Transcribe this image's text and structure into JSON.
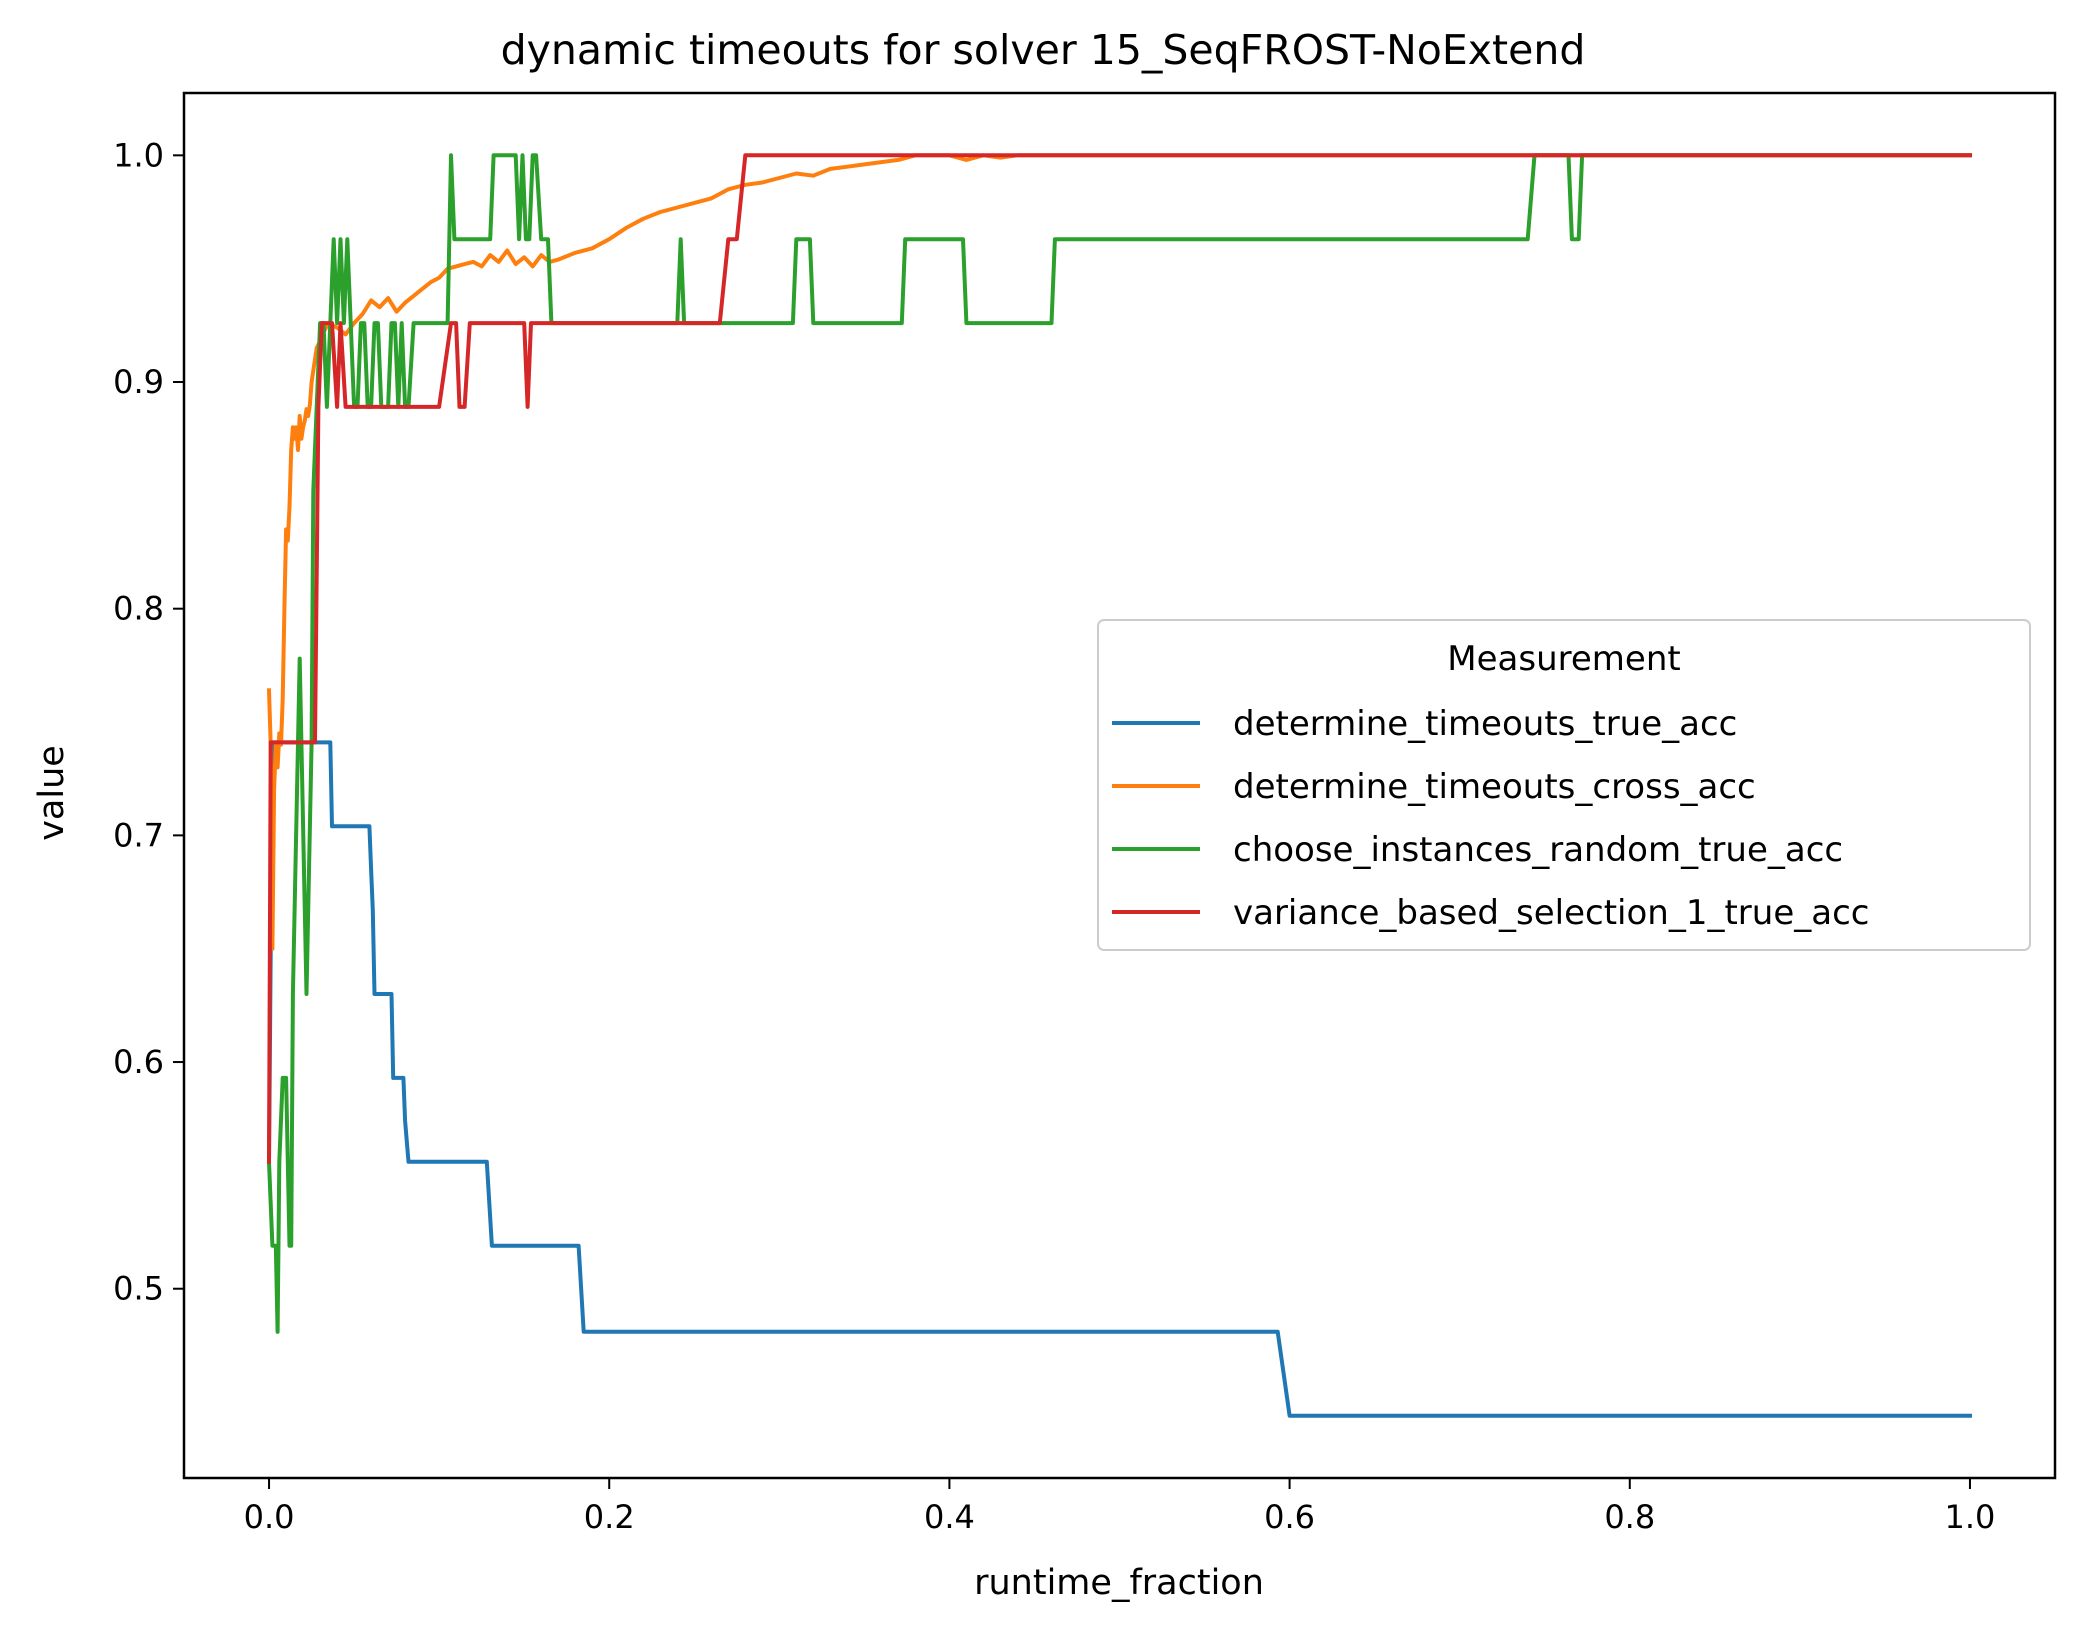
{
  "chart_data": {
    "type": "line",
    "title": "dynamic timeouts for solver 15_SeqFROST-NoExtend",
    "xlabel": "runtime_fraction",
    "ylabel": "value",
    "xlim": [
      -0.05,
      1.05
    ],
    "ylim": [
      0.4165,
      1.0275
    ],
    "xticks": [
      0.0,
      0.2,
      0.4,
      0.6,
      0.8,
      1.0
    ],
    "xtick_labels": [
      "0.0",
      "0.2",
      "0.4",
      "0.6",
      "0.8",
      "1.0"
    ],
    "yticks": [
      0.5,
      0.6,
      0.7,
      0.8,
      0.9,
      1.0
    ],
    "ytick_labels": [
      "0.5",
      "0.6",
      "0.7",
      "0.8",
      "0.9",
      "1.0"
    ],
    "grid": false,
    "legend": {
      "title": "Measurement",
      "placement": "center-right"
    },
    "series": [
      {
        "name": "determine_timeouts_true_acc",
        "color": "#1f77b4",
        "x": [
          0.0,
          0.002,
          0.004,
          0.036,
          0.037,
          0.059,
          0.06,
          0.061,
          0.062,
          0.072,
          0.073,
          0.079,
          0.08,
          0.082,
          0.128,
          0.131,
          0.182,
          0.185,
          0.593,
          0.6,
          1.0
        ],
        "y": [
          0.556,
          0.741,
          0.741,
          0.741,
          0.704,
          0.704,
          0.685,
          0.667,
          0.63,
          0.63,
          0.593,
          0.593,
          0.574,
          0.556,
          0.556,
          0.519,
          0.519,
          0.481,
          0.481,
          0.444,
          0.444
        ]
      },
      {
        "name": "determine_timeouts_cross_acc",
        "color": "#ff7f0e",
        "x": [
          0.0,
          0.001,
          0.002,
          0.003,
          0.004,
          0.005,
          0.006,
          0.007,
          0.008,
          0.009,
          0.01,
          0.011,
          0.012,
          0.013,
          0.014,
          0.015,
          0.016,
          0.017,
          0.018,
          0.019,
          0.02,
          0.021,
          0.022,
          0.023,
          0.024,
          0.025,
          0.026,
          0.027,
          0.028,
          0.03,
          0.032,
          0.035,
          0.04,
          0.045,
          0.05,
          0.055,
          0.06,
          0.065,
          0.07,
          0.075,
          0.08,
          0.085,
          0.09,
          0.095,
          0.1,
          0.105,
          0.11,
          0.115,
          0.12,
          0.125,
          0.13,
          0.135,
          0.14,
          0.145,
          0.15,
          0.155,
          0.16,
          0.165,
          0.17,
          0.18,
          0.19,
          0.2,
          0.21,
          0.22,
          0.23,
          0.24,
          0.25,
          0.26,
          0.265,
          0.27,
          0.28,
          0.29,
          0.3,
          0.31,
          0.32,
          0.33,
          0.34,
          0.35,
          0.36,
          0.37,
          0.38,
          0.4,
          0.41,
          0.42,
          0.43,
          0.44,
          1.0
        ],
        "y": [
          0.764,
          0.74,
          0.65,
          0.72,
          0.74,
          0.73,
          0.745,
          0.74,
          0.76,
          0.8,
          0.835,
          0.83,
          0.845,
          0.87,
          0.88,
          0.875,
          0.88,
          0.87,
          0.885,
          0.875,
          0.88,
          0.883,
          0.888,
          0.885,
          0.89,
          0.9,
          0.905,
          0.91,
          0.915,
          0.918,
          0.922,
          0.926,
          0.924,
          0.921,
          0.926,
          0.93,
          0.936,
          0.933,
          0.937,
          0.931,
          0.935,
          0.938,
          0.941,
          0.944,
          0.946,
          0.95,
          0.951,
          0.952,
          0.953,
          0.951,
          0.956,
          0.953,
          0.958,
          0.952,
          0.955,
          0.951,
          0.956,
          0.953,
          0.954,
          0.957,
          0.959,
          0.963,
          0.968,
          0.972,
          0.975,
          0.977,
          0.979,
          0.981,
          0.983,
          0.985,
          0.987,
          0.988,
          0.99,
          0.992,
          0.991,
          0.994,
          0.995,
          0.996,
          0.997,
          0.998,
          1.0,
          1.0,
          0.998,
          1.0,
          0.999,
          1.0,
          1.0
        ]
      },
      {
        "name": "choose_instances_random_true_acc",
        "color": "#2ca02c",
        "x": [
          0.0,
          0.002,
          0.004,
          0.005,
          0.006,
          0.008,
          0.01,
          0.012,
          0.013,
          0.014,
          0.016,
          0.018,
          0.02,
          0.022,
          0.024,
          0.025,
          0.026,
          0.028,
          0.03,
          0.032,
          0.034,
          0.036,
          0.038,
          0.04,
          0.042,
          0.044,
          0.046,
          0.048,
          0.05,
          0.052,
          0.054,
          0.056,
          0.058,
          0.06,
          0.062,
          0.064,
          0.066,
          0.068,
          0.07,
          0.072,
          0.074,
          0.076,
          0.078,
          0.08,
          0.082,
          0.085,
          0.088,
          0.09,
          0.1,
          0.105,
          0.107,
          0.109,
          0.111,
          0.13,
          0.132,
          0.145,
          0.147,
          0.149,
          0.151,
          0.153,
          0.155,
          0.157,
          0.16,
          0.162,
          0.164,
          0.166,
          0.17,
          0.172,
          0.24,
          0.242,
          0.244,
          0.246,
          0.308,
          0.31,
          0.318,
          0.32,
          0.372,
          0.374,
          0.408,
          0.41,
          0.46,
          0.462,
          0.74,
          0.744,
          0.764,
          0.766,
          0.77,
          0.772,
          1.0
        ],
        "y": [
          0.556,
          0.519,
          0.519,
          0.481,
          0.556,
          0.593,
          0.593,
          0.519,
          0.519,
          0.63,
          0.704,
          0.778,
          0.704,
          0.63,
          0.704,
          0.741,
          0.852,
          0.889,
          0.926,
          0.926,
          0.889,
          0.926,
          0.963,
          0.926,
          0.963,
          0.926,
          0.963,
          0.926,
          0.889,
          0.889,
          0.926,
          0.926,
          0.889,
          0.889,
          0.926,
          0.926,
          0.889,
          0.889,
          0.889,
          0.926,
          0.926,
          0.889,
          0.926,
          0.889,
          0.889,
          0.926,
          0.926,
          0.926,
          0.926,
          0.926,
          1.0,
          0.963,
          0.963,
          0.963,
          1.0,
          1.0,
          0.963,
          1.0,
          0.963,
          0.963,
          1.0,
          1.0,
          0.963,
          0.963,
          0.963,
          0.926,
          0.926,
          0.926,
          0.926,
          0.963,
          0.926,
          0.926,
          0.926,
          0.963,
          0.963,
          0.926,
          0.926,
          0.963,
          0.963,
          0.926,
          0.926,
          0.963,
          0.963,
          1.0,
          1.0,
          0.963,
          0.963,
          1.0,
          1.0
        ]
      },
      {
        "name": "variance_based_selection_1_true_acc",
        "color": "#d62728",
        "x": [
          0.0,
          0.001,
          0.003,
          0.027,
          0.029,
          0.031,
          0.035,
          0.037,
          0.04,
          0.042,
          0.045,
          0.05,
          0.1,
          0.107,
          0.11,
          0.112,
          0.115,
          0.118,
          0.15,
          0.152,
          0.154,
          0.156,
          0.25,
          0.265,
          0.27,
          0.275,
          0.28,
          0.29,
          1.0
        ],
        "y": [
          0.556,
          0.741,
          0.741,
          0.741,
          0.889,
          0.926,
          0.926,
          0.926,
          0.889,
          0.926,
          0.889,
          0.889,
          0.889,
          0.926,
          0.926,
          0.889,
          0.889,
          0.926,
          0.926,
          0.889,
          0.926,
          0.926,
          0.926,
          0.926,
          0.963,
          0.963,
          1.0,
          1.0,
          1.0
        ]
      }
    ]
  }
}
